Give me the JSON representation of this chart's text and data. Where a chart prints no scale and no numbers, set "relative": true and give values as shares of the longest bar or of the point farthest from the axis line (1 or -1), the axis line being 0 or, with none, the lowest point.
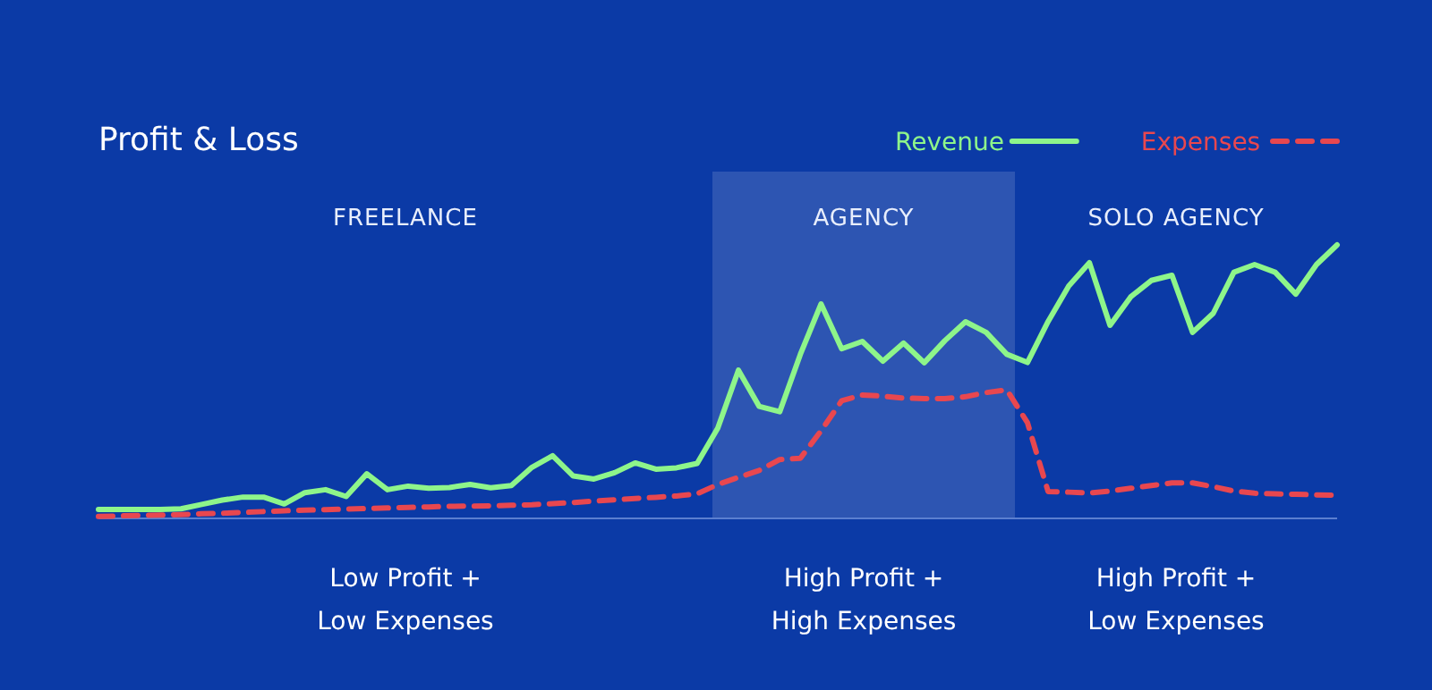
{
  "chart_data": {
    "type": "line",
    "title": "Profit & Loss",
    "relative": true,
    "legend": "top right",
    "marker": "none",
    "categories": [
      null,
      null,
      null,
      null,
      null,
      null,
      null,
      null,
      null,
      null,
      null,
      null,
      null,
      null,
      null,
      null,
      null,
      null,
      null,
      null,
      null,
      null,
      null,
      null,
      null,
      null,
      null,
      null,
      null,
      null,
      null,
      null,
      null,
      null,
      null,
      null,
      null,
      null,
      null,
      null,
      null,
      null,
      null,
      null,
      null,
      null,
      null,
      null,
      null,
      null,
      null,
      null,
      null,
      null,
      null,
      null,
      null,
      null,
      null,
      null,
      null
    ],
    "series": [
      {
        "name": "Revenue",
        "color": "#8ef58a",
        "line_style": "solid",
        "values": [
          0.033,
          0.033,
          0.033,
          0.033,
          0.035,
          0.051,
          0.067,
          0.078,
          0.078,
          0.053,
          0.094,
          0.105,
          0.08,
          0.163,
          0.105,
          0.118,
          0.11,
          0.113,
          0.124,
          0.112,
          0.12,
          0.187,
          0.229,
          0.155,
          0.144,
          0.167,
          0.203,
          0.18,
          0.185,
          0.201,
          0.33,
          0.542,
          0.41,
          0.39,
          0.6,
          0.784,
          0.62,
          0.647,
          0.575,
          0.641,
          0.569,
          0.65,
          0.719,
          0.68,
          0.6,
          0.57,
          0.72,
          0.85,
          0.935,
          0.706,
          0.81,
          0.87,
          0.889,
          0.68,
          0.75,
          0.9,
          0.928,
          0.9,
          0.82,
          0.928,
          1
        ]
      },
      {
        "name": "Expenses",
        "color": "#e8474f",
        "line_style": "dashed",
        "values": [
          0.007,
          0.009,
          0.011,
          0.012,
          0.014,
          0.017,
          0.019,
          0.022,
          0.025,
          0.028,
          0.03,
          0.032,
          0.034,
          0.036,
          0.038,
          0.04,
          0.042,
          0.044,
          0.045,
          0.046,
          0.048,
          0.05,
          0.054,
          0.058,
          0.063,
          0.068,
          0.073,
          0.077,
          0.082,
          0.09,
          0.124,
          0.15,
          0.175,
          0.215,
          0.22,
          0.32,
          0.43,
          0.451,
          0.447,
          0.44,
          0.438,
          0.438,
          0.445,
          0.46,
          0.47,
          0.35,
          0.098,
          0.096,
          0.093,
          0.1,
          0.11,
          0.12,
          0.13,
          0.13,
          0.116,
          0.1,
          0.092,
          0.09,
          0.088,
          0.086,
          0.085
        ]
      }
    ],
    "annotations": [
      "FREELANCE",
      "AGENCY",
      "SOLO AGENCY",
      "Low Profit +\nLow Expenses",
      "High Profit +\nHigh Expenses",
      "High Profit +\nLow Expenses"
    ]
  }
}
